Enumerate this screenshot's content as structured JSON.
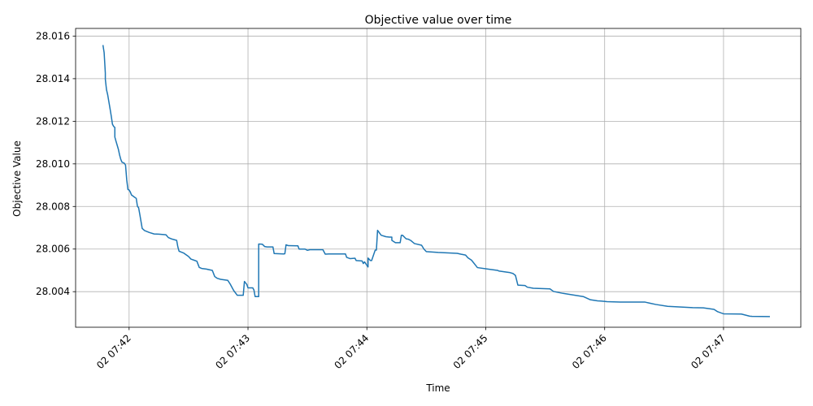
{
  "chart_data": {
    "type": "line",
    "title": "Objective value over time",
    "xlabel": "Time",
    "ylabel": "Objective Value",
    "grid": true,
    "line_color": "#1f77b4",
    "xlim": [
      41.55,
      47.65
    ],
    "ylim": [
      28.00233,
      28.01636
    ],
    "x_unit": "minutes past 07:00 on day 02",
    "x_ticks": [
      {
        "value": 42,
        "label": "02 07:42"
      },
      {
        "value": 43,
        "label": "02 07:43"
      },
      {
        "value": 44,
        "label": "02 07:44"
      },
      {
        "value": 45,
        "label": "02 07:45"
      },
      {
        "value": 46,
        "label": "02 07:46"
      },
      {
        "value": 47,
        "label": "02 07:47"
      }
    ],
    "y_ticks": [
      {
        "value": 28.004,
        "label": "28.004"
      },
      {
        "value": 28.006,
        "label": "28.006"
      },
      {
        "value": 28.008,
        "label": "28.008"
      },
      {
        "value": 28.01,
        "label": "28.010"
      },
      {
        "value": 28.012,
        "label": "28.012"
      },
      {
        "value": 28.014,
        "label": "28.014"
      },
      {
        "value": 28.016,
        "label": "28.016"
      }
    ],
    "series": [
      {
        "x": [
          41.78,
          41.79,
          41.8,
          41.8,
          41.81,
          41.82,
          41.84,
          41.85,
          41.86,
          41.87,
          41.88,
          41.88,
          41.89,
          41.9,
          41.91,
          41.92,
          41.93,
          41.94,
          41.96,
          41.97,
          41.98,
          41.99,
          42.0,
          42.01,
          42.02,
          42.03,
          42.04,
          42.06,
          42.07,
          42.08,
          42.09,
          42.11,
          42.13,
          42.17,
          42.21,
          42.25,
          42.31,
          42.33,
          42.36,
          42.4,
          42.41,
          42.42,
          42.43,
          42.46,
          42.5,
          42.52,
          42.55,
          42.57,
          42.59,
          42.61,
          42.65,
          42.7,
          42.72,
          42.74,
          42.77,
          42.83,
          42.85,
          42.88,
          42.91,
          42.94,
          42.96,
          42.97,
          42.98,
          42.99,
          43.0,
          43.01,
          43.02,
          43.04,
          43.05,
          43.06,
          43.07,
          43.09,
          43.09,
          43.12,
          43.14,
          43.16,
          43.21,
          43.22,
          43.3,
          43.31,
          43.32,
          43.34,
          43.42,
          43.43,
          43.48,
          43.5,
          43.52,
          43.55,
          43.57,
          43.63,
          43.65,
          43.68,
          43.78,
          43.82,
          43.83,
          43.86,
          43.9,
          43.91,
          43.96,
          43.97,
          43.98,
          44.01,
          44.01,
          44.03,
          44.04,
          44.07,
          44.08,
          44.09,
          44.12,
          44.16,
          44.19,
          44.21,
          44.21,
          44.24,
          44.27,
          44.28,
          44.29,
          44.3,
          44.33,
          44.35,
          44.37,
          44.4,
          44.46,
          44.48,
          44.5,
          44.6,
          44.76,
          44.79,
          44.83,
          44.85,
          44.88,
          44.93,
          45.03,
          45.1,
          45.11,
          45.2,
          45.23,
          45.25,
          45.27,
          45.33,
          45.35,
          45.4,
          45.54,
          45.57,
          45.65,
          45.74,
          45.82,
          45.88,
          45.94,
          45.97,
          46.02,
          46.15,
          46.34,
          46.38,
          46.43,
          46.53,
          46.74,
          46.83,
          46.92,
          46.95,
          47.0,
          47.15,
          47.22,
          47.24,
          47.39
        ],
        "y": [
          28.01558,
          28.01522,
          28.01426,
          28.01397,
          28.01348,
          28.01324,
          28.01258,
          28.01224,
          28.01186,
          28.01176,
          28.01171,
          28.01126,
          28.01106,
          28.01087,
          28.01068,
          28.01042,
          28.01021,
          28.01008,
          28.01003,
          28.00994,
          28.00925,
          28.0088,
          28.00877,
          28.00868,
          28.00854,
          28.0085,
          28.00846,
          28.00838,
          28.00801,
          28.00794,
          28.00763,
          28.00697,
          28.00687,
          28.00678,
          28.00671,
          28.0067,
          28.00667,
          28.00654,
          28.00647,
          28.00641,
          28.0061,
          28.0059,
          28.00588,
          28.00581,
          28.00565,
          28.00553,
          28.00547,
          28.00543,
          28.00514,
          28.00509,
          28.00506,
          28.005,
          28.00471,
          28.00463,
          28.00458,
          28.00453,
          28.00436,
          28.00405,
          28.00383,
          28.00383,
          28.00383,
          28.00448,
          28.00441,
          28.00434,
          28.00418,
          28.00418,
          28.00418,
          28.00418,
          28.00408,
          28.00377,
          28.00377,
          28.00377,
          28.00624,
          28.00623,
          28.00612,
          28.0061,
          28.0061,
          28.00579,
          28.00577,
          28.00578,
          28.0062,
          28.00616,
          28.00615,
          28.006,
          28.006,
          28.00594,
          28.00597,
          28.00597,
          28.00597,
          28.00597,
          28.00576,
          28.00577,
          28.00577,
          28.00577,
          28.00561,
          28.00555,
          28.00557,
          28.00546,
          28.00544,
          28.00532,
          28.0054,
          28.00516,
          28.00558,
          28.00546,
          28.00546,
          28.00595,
          28.00595,
          28.00688,
          28.00665,
          28.00658,
          28.00656,
          28.00656,
          28.00641,
          28.0063,
          28.0063,
          28.0063,
          28.00665,
          28.00665,
          28.00648,
          28.00646,
          28.0064,
          28.00626,
          28.00618,
          28.006,
          28.00588,
          28.00584,
          28.0058,
          28.00576,
          28.00572,
          28.00559,
          28.00548,
          28.00513,
          28.00505,
          28.005,
          28.00497,
          28.0049,
          28.00485,
          28.00476,
          28.00431,
          28.00429,
          28.00421,
          28.00416,
          28.00413,
          28.00401,
          28.00392,
          28.00384,
          28.00377,
          28.00362,
          28.00357,
          28.00356,
          28.00353,
          28.00351,
          28.00351,
          28.00346,
          28.0034,
          28.00331,
          28.00325,
          28.00324,
          28.00317,
          28.00306,
          28.00296,
          28.00295,
          28.00285,
          28.00284,
          28.00283
        ]
      }
    ]
  }
}
